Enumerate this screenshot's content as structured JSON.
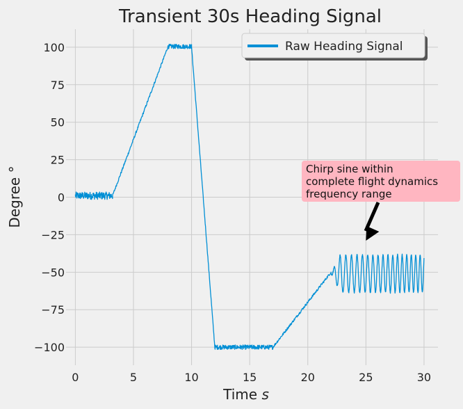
{
  "chart_data": {
    "type": "line",
    "title": "Transient 30s Heading Signal",
    "xlabel": "Time s",
    "ylabel": "Degree °",
    "xlim": [
      -0.8,
      31.2
    ],
    "ylim": [
      -112,
      112
    ],
    "xticks": [
      0,
      5,
      10,
      15,
      20,
      25,
      30
    ],
    "yticks": [
      -100,
      -75,
      -50,
      -25,
      0,
      25,
      50,
      75,
      100
    ],
    "xtick_labels": [
      "0",
      "5",
      "10",
      "15",
      "20",
      "25",
      "30"
    ],
    "ytick_labels": [
      "−100",
      "−75",
      "−50",
      "−25",
      "0",
      "25",
      "50",
      "75",
      "100"
    ],
    "grid": true,
    "legend_position": "top-right",
    "series": [
      {
        "name": "Raw Heading Signal",
        "color": "#008fd5",
        "segments": [
          {
            "shape": "noise",
            "x": [
              0,
              3.2
            ],
            "center": 1,
            "amplitude": 2.5
          },
          {
            "shape": "ramp",
            "x": [
              3.2,
              8.0
            ],
            "y": [
              1,
              101
            ]
          },
          {
            "shape": "noise",
            "x": [
              8.0,
              10.0
            ],
            "center": 100.5,
            "amplitude": 1.5
          },
          {
            "shape": "ramp",
            "x": [
              10.0,
              12.0
            ],
            "y": [
              100,
              -100
            ]
          },
          {
            "shape": "noise",
            "x": [
              12.0,
              17.0
            ],
            "center": -100,
            "amplitude": 1.5
          },
          {
            "shape": "ramp",
            "x": [
              17.0,
              22.0
            ],
            "y": [
              -100,
              -50
            ]
          },
          {
            "shape": "chirp",
            "x": [
              22.0,
              30.0
            ],
            "center": -51,
            "amplitude": 12.5
          }
        ]
      }
    ],
    "annotation": {
      "lines": [
        "Chirp sine within",
        "complete flight dynamics",
        "frequency range"
      ],
      "box_color": "#ffb6c1",
      "arrow_target": [
        25,
        -29
      ]
    }
  }
}
